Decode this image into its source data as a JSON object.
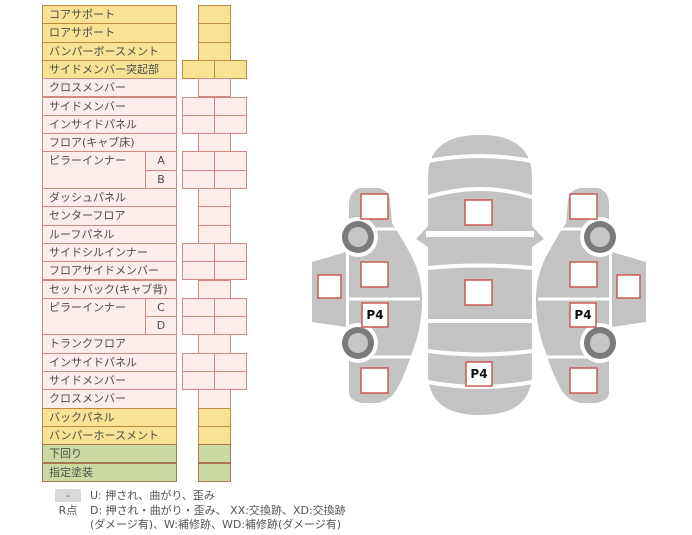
{
  "panel": {
    "rows": [
      {
        "label": "コアサポート",
        "color": "yellow",
        "cells": "single"
      },
      {
        "label": "ロアサポート",
        "color": "yellow",
        "cells": "single"
      },
      {
        "label": "バンパーボースメント",
        "color": "yellow",
        "cells": "single"
      },
      {
        "label": "サイドメンバー突起部",
        "color": "yellow",
        "cells": "double"
      },
      {
        "label": "クロスメンバー",
        "color": "pink",
        "cells": "single"
      },
      {
        "label": "サイドメンバー",
        "color": "pink",
        "cells": "double"
      },
      {
        "label": "インサイドパネル",
        "color": "pink",
        "cells": "double"
      },
      {
        "label": "フロア(キャブ床)",
        "color": "pink",
        "cells": "single"
      },
      {
        "label": "ピラーインナー",
        "sub": "A",
        "color": "pink",
        "cells": "double",
        "group": "start"
      },
      {
        "label": "",
        "sub": "B",
        "color": "pink",
        "cells": "double",
        "group": "cont"
      },
      {
        "label": "ダッシュパネル",
        "color": "pink",
        "cells": "single"
      },
      {
        "label": "センターフロア",
        "color": "pink",
        "cells": "single"
      },
      {
        "label": "ルーフパネル",
        "color": "pink",
        "cells": "single"
      },
      {
        "label": "サイドシルインナー",
        "color": "pink",
        "cells": "double"
      },
      {
        "label": "フロアサイドメンバー",
        "color": "pink",
        "cells": "double"
      },
      {
        "label": "セットバック(キャブ背)",
        "color": "pink",
        "cells": "single"
      },
      {
        "label": "ピラーインナー",
        "sub": "C",
        "color": "pink",
        "cells": "double",
        "group": "start"
      },
      {
        "label": "",
        "sub": "D",
        "color": "pink",
        "cells": "double",
        "group": "cont"
      },
      {
        "label": "トランクフロア",
        "color": "pink",
        "cells": "single"
      },
      {
        "label": "インサイドパネル",
        "color": "pink",
        "cells": "double"
      },
      {
        "label": "サイドメンバー",
        "color": "pink",
        "cells": "double"
      },
      {
        "label": "クロスメンバー",
        "color": "pink",
        "cells": "single"
      },
      {
        "label": "バックパネル",
        "color": "yellow",
        "cells": "single"
      },
      {
        "label": "バンパーホースメント",
        "color": "yellow",
        "cells": "single"
      },
      {
        "label": "下回り",
        "color": "green",
        "cells": "single"
      },
      {
        "label": "指定塗装",
        "color": "green",
        "cells": "single"
      }
    ]
  },
  "legend": {
    "dash_symbol": "-",
    "line1": "U: 押され、曲がり、歪み",
    "r_label": "R点",
    "line2": "D: 押され・曲がり・歪み、 XX:交換跡、XD:交換跡",
    "line3": "(ダメージ有)、W:補修跡、WD:補修跡(ダメージ有)"
  },
  "diagram": {
    "markers": [
      {
        "view": "left-side-rear-door",
        "label": "P4"
      },
      {
        "view": "top-trunk",
        "label": "P4"
      },
      {
        "view": "right-side-rear-door",
        "label": "P4"
      }
    ]
  },
  "colors": {
    "yellow_fill": "#F8E294",
    "yellow_border": "#C08A3E",
    "pink_fill": "#FCEDEB",
    "pink_border": "#CE8A80",
    "green_fill": "#CADAA2",
    "green_border": "#A8764F",
    "square_border": "#C75B54",
    "car_gray": "#C3C3C3",
    "wheel_ring": "#7B7B7B",
    "wheel_hub": "#C6C6C6",
    "legend_badge_bg": "#D9D9D9"
  }
}
